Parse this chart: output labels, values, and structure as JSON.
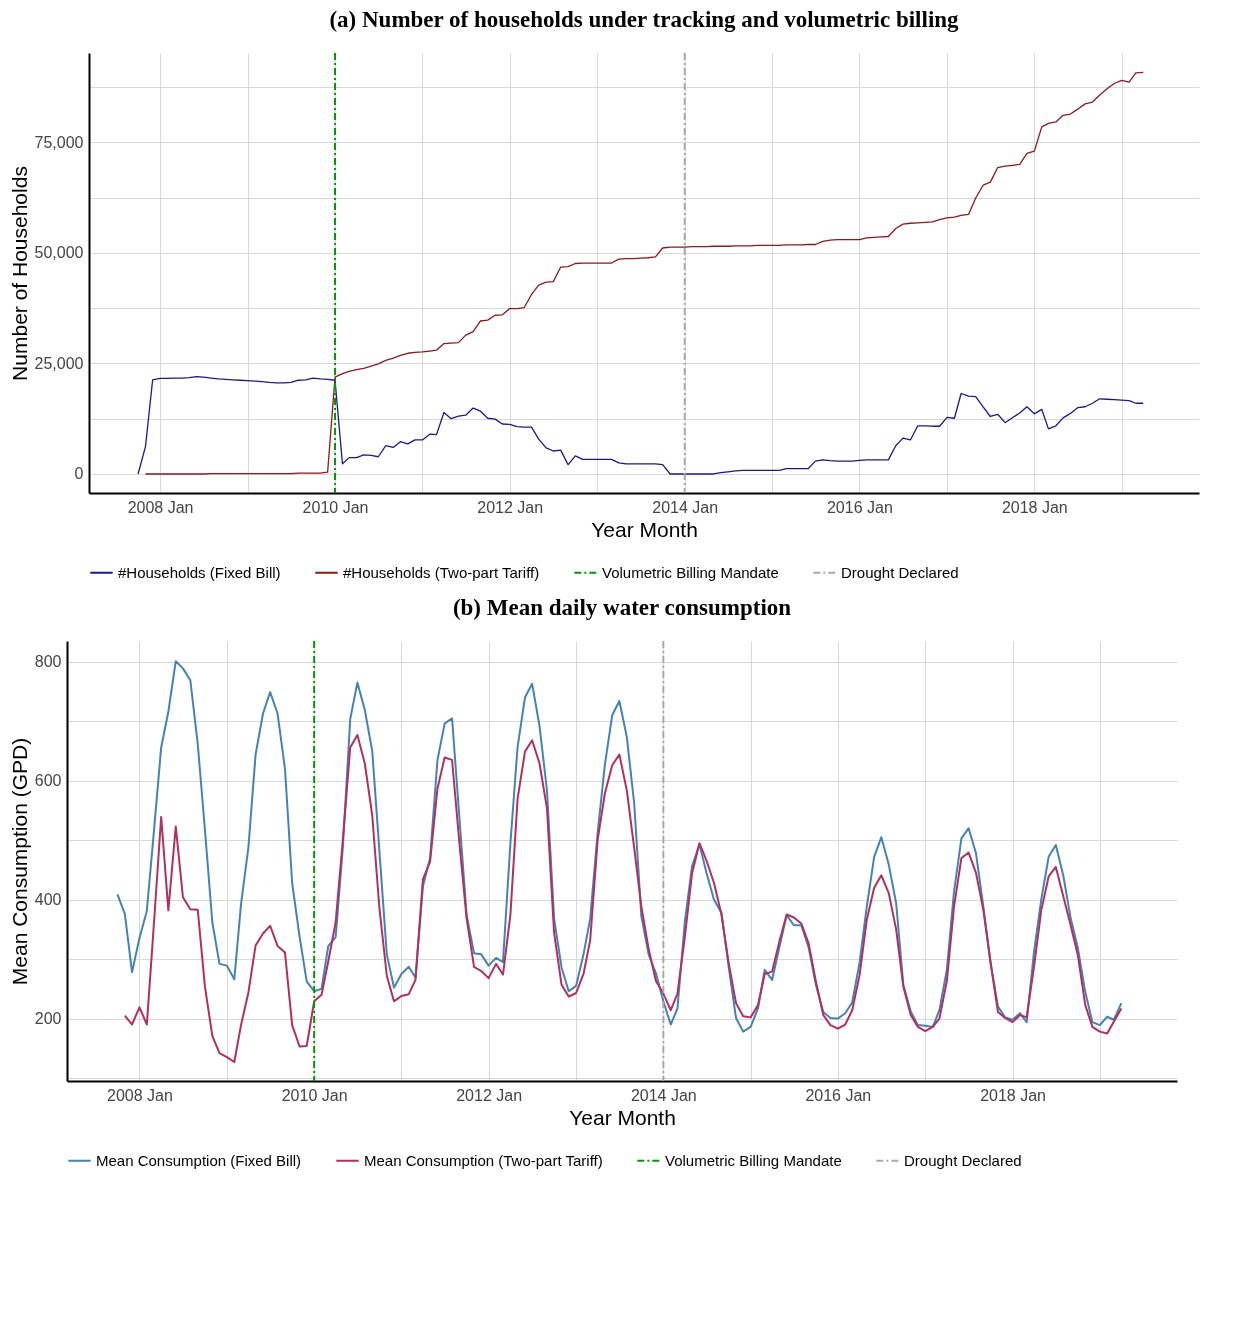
{
  "chart_data": [
    {
      "type": "line",
      "title": "(a) Number of households under tracking and volumetric billing",
      "xlabel": "Year Month",
      "ylabel": "Number of Households",
      "x": [
        "2007-10",
        "2007-11",
        "2007-12",
        "2008-01",
        "2008-02",
        "2008-03",
        "2008-04",
        "2008-05",
        "2008-06",
        "2008-07",
        "2008-08",
        "2008-09",
        "2008-10",
        "2008-11",
        "2008-12",
        "2009-01",
        "2009-02",
        "2009-03",
        "2009-04",
        "2009-05",
        "2009-06",
        "2009-07",
        "2009-08",
        "2009-09",
        "2009-10",
        "2009-11",
        "2009-12",
        "2010-01",
        "2010-02",
        "2010-03",
        "2010-04",
        "2010-05",
        "2010-06",
        "2010-07",
        "2010-08",
        "2010-09",
        "2010-10",
        "2010-11",
        "2010-12",
        "2011-01",
        "2011-02",
        "2011-03",
        "2011-04",
        "2011-05",
        "2011-06",
        "2011-07",
        "2011-08",
        "2011-09",
        "2011-10",
        "2011-11",
        "2011-12",
        "2012-01",
        "2012-02",
        "2012-03",
        "2012-04",
        "2012-05",
        "2012-06",
        "2012-07",
        "2012-08",
        "2012-09",
        "2012-10",
        "2012-11",
        "2012-12",
        "2013-01",
        "2013-02",
        "2013-03",
        "2013-04",
        "2013-05",
        "2013-06",
        "2013-07",
        "2013-08",
        "2013-09",
        "2013-10",
        "2013-11",
        "2013-12",
        "2014-01",
        "2014-02",
        "2014-03",
        "2014-04",
        "2014-05",
        "2014-06",
        "2014-07",
        "2014-08",
        "2014-09",
        "2014-10",
        "2014-11",
        "2014-12",
        "2015-01",
        "2015-02",
        "2015-03",
        "2015-04",
        "2015-05",
        "2015-06",
        "2015-07",
        "2015-08",
        "2015-09",
        "2015-10",
        "2015-11",
        "2015-12",
        "2016-01",
        "2016-02",
        "2016-03",
        "2016-04",
        "2016-05",
        "2016-06",
        "2016-07",
        "2016-08",
        "2016-09",
        "2016-10",
        "2016-11",
        "2016-12",
        "2017-01",
        "2017-02",
        "2017-03",
        "2017-04",
        "2017-05",
        "2017-06",
        "2017-07",
        "2017-08",
        "2017-09",
        "2017-10",
        "2017-11",
        "2017-12",
        "2018-01",
        "2018-02",
        "2018-03",
        "2018-04",
        "2018-05",
        "2018-06",
        "2018-07",
        "2018-08",
        "2018-09",
        "2018-10",
        "2018-11",
        "2018-12",
        "2019-01",
        "2019-02",
        "2019-03",
        "2019-04"
      ],
      "series": [
        {
          "name": "#Households (Fixed Bill)",
          "color": "#1a1a8c",
          "values": [
            0,
            6200,
            21300,
            21600,
            21600,
            21700,
            21700,
            21800,
            22000,
            21900,
            21700,
            21500,
            21400,
            21300,
            21200,
            21100,
            21000,
            20900,
            20700,
            20600,
            20600,
            20700,
            21200,
            21300,
            21700,
            21500,
            21400,
            21200,
            2300,
            3700,
            3700,
            4300,
            4200,
            3900,
            6400,
            6000,
            7300,
            6800,
            7700,
            7700,
            9000,
            8900,
            13900,
            12500,
            13100,
            13300,
            14900,
            14200,
            12600,
            12400,
            11300,
            11200,
            10700,
            10600,
            10600,
            7900,
            5900,
            5200,
            5400,
            2100,
            4100,
            3300,
            3300,
            3300,
            3300,
            3300,
            2500,
            2300,
            2300,
            2300,
            2300,
            2300,
            2100,
            0,
            0,
            0,
            0,
            0,
            0,
            0,
            300,
            500,
            700,
            800,
            800,
            800,
            800,
            800,
            800,
            1200,
            1200,
            1200,
            1200,
            2900,
            3200,
            3000,
            2900,
            2900,
            2900,
            3100,
            3200,
            3200,
            3200,
            3200,
            6400,
            8100,
            7700,
            10900,
            10900,
            10800,
            10800,
            12800,
            12600,
            18200,
            17600,
            17500,
            15200,
            13000,
            13500,
            11600,
            12700,
            13800,
            15200,
            13600,
            14600,
            10200,
            10900,
            12700,
            13700,
            15000,
            15200,
            16000,
            17000,
            16900,
            16800,
            16700,
            16600,
            16000,
            16000
          ]
        },
        {
          "name": "#Households (Two-part Tariff)",
          "color": "#8b1a1a",
          "values": [
            null,
            0,
            0,
            0,
            0,
            0,
            0,
            0,
            0,
            0,
            100,
            100,
            100,
            100,
            100,
            100,
            100,
            100,
            100,
            100,
            100,
            100,
            200,
            200,
            200,
            200,
            400,
            21900,
            22700,
            23200,
            23600,
            23900,
            24400,
            24900,
            25700,
            26200,
            26800,
            27300,
            27500,
            27600,
            27800,
            28000,
            29500,
            29600,
            29700,
            31400,
            32200,
            34600,
            34800,
            35900,
            36000,
            37400,
            37400,
            37600,
            40600,
            42700,
            43400,
            43500,
            46800,
            46900,
            47600,
            47700,
            47700,
            47700,
            47700,
            47700,
            48600,
            48700,
            48700,
            48800,
            48900,
            49100,
            51100,
            51300,
            51300,
            51300,
            51400,
            51400,
            51400,
            51500,
            51500,
            51500,
            51600,
            51600,
            51600,
            51700,
            51700,
            51700,
            51700,
            51800,
            51800,
            51800,
            51900,
            51900,
            52600,
            52900,
            53000,
            53000,
            53000,
            53000,
            53400,
            53500,
            53600,
            53700,
            55500,
            56500,
            56700,
            56800,
            56900,
            57000,
            57500,
            57900,
            58100,
            58500,
            58700,
            62400,
            65300,
            66000,
            69300,
            69600,
            69800,
            70000,
            72500,
            73000,
            78500,
            79300,
            79600,
            81100,
            81400,
            82500,
            83700,
            84100,
            85700,
            87100,
            88300,
            89000,
            88600,
            90700,
            90800
          ]
        }
      ],
      "xlim": [
        "2007-03-10",
        "2019-11-20"
      ],
      "xticks": [
        {
          "value": "2008-01",
          "label": "2008 Jan"
        },
        {
          "value": "2009-01",
          "label": null
        },
        {
          "value": "2010-01",
          "label": "2010 Jan"
        },
        {
          "value": "2011-01",
          "label": null
        },
        {
          "value": "2012-01",
          "label": "2012 Jan"
        },
        {
          "value": "2013-01",
          "label": null
        },
        {
          "value": "2014-01",
          "label": "2014 Jan"
        },
        {
          "value": "2015-01",
          "label": null
        },
        {
          "value": "2016-01",
          "label": "2016 Jan"
        },
        {
          "value": "2017-01",
          "label": null
        },
        {
          "value": "2018-01",
          "label": "2018 Jan"
        },
        {
          "value": "2019-01",
          "label": null
        }
      ],
      "ylim": [
        -4300,
        95200
      ],
      "yticks": [
        0,
        {
          "value": 12500,
          "label": null
        },
        {
          "value": 25000,
          "label": "25,000"
        },
        {
          "value": 37500,
          "label": null
        },
        {
          "value": 50000,
          "label": "50,000"
        },
        {
          "value": 62500,
          "label": null
        },
        {
          "value": 75000,
          "label": "75,000"
        },
        {
          "value": 87500,
          "label": null
        }
      ],
      "ref_lines": [
        {
          "axis": "x",
          "value": "2010-01",
          "label": "Volumetric Billing Mandate",
          "color": "#009900",
          "line_style": "dashed"
        },
        {
          "axis": "x",
          "value": "2014-01",
          "label": "Drought Declared",
          "color": "#a9a9a9",
          "line_style": "dashed"
        }
      ],
      "grid": true,
      "legend": "bottom"
    },
    {
      "type": "line",
      "title": "(b) Mean daily water consumption",
      "xlabel": "Year Month",
      "ylabel": "Mean Consumption (GPD)",
      "x": [
        "2007-10",
        "2007-11",
        "2007-12",
        "2008-01",
        "2008-02",
        "2008-03",
        "2008-04",
        "2008-05",
        "2008-06",
        "2008-07",
        "2008-08",
        "2008-09",
        "2008-10",
        "2008-11",
        "2008-12",
        "2009-01",
        "2009-02",
        "2009-03",
        "2009-04",
        "2009-05",
        "2009-06",
        "2009-07",
        "2009-08",
        "2009-09",
        "2009-10",
        "2009-11",
        "2009-12",
        "2010-01",
        "2010-02",
        "2010-03",
        "2010-04",
        "2010-05",
        "2010-06",
        "2010-07",
        "2010-08",
        "2010-09",
        "2010-10",
        "2010-11",
        "2010-12",
        "2011-01",
        "2011-02",
        "2011-03",
        "2011-04",
        "2011-05",
        "2011-06",
        "2011-07",
        "2011-08",
        "2011-09",
        "2011-10",
        "2011-11",
        "2011-12",
        "2012-01",
        "2012-02",
        "2012-03",
        "2012-04",
        "2012-05",
        "2012-06",
        "2012-07",
        "2012-08",
        "2012-09",
        "2012-10",
        "2012-11",
        "2012-12",
        "2013-01",
        "2013-02",
        "2013-03",
        "2013-04",
        "2013-05",
        "2013-06",
        "2013-07",
        "2013-08",
        "2013-09",
        "2013-10",
        "2013-11",
        "2013-12",
        "2014-01",
        "2014-02",
        "2014-03",
        "2014-04",
        "2014-05",
        "2014-06",
        "2014-07",
        "2014-08",
        "2014-09",
        "2014-10",
        "2014-11",
        "2014-12",
        "2015-01",
        "2015-02",
        "2015-03",
        "2015-04",
        "2015-05",
        "2015-06",
        "2015-07",
        "2015-08",
        "2015-09",
        "2015-10",
        "2015-11",
        "2015-12",
        "2016-01",
        "2016-02",
        "2016-03",
        "2016-04",
        "2016-05",
        "2016-06",
        "2016-07",
        "2016-08",
        "2016-09",
        "2016-10",
        "2016-11",
        "2016-12",
        "2017-01",
        "2017-02",
        "2017-03",
        "2017-04",
        "2017-05",
        "2017-06",
        "2017-07",
        "2017-08",
        "2017-09",
        "2017-10",
        "2017-11",
        "2017-12",
        "2018-01",
        "2018-02",
        "2018-03",
        "2018-04",
        "2018-05",
        "2018-06",
        "2018-07",
        "2018-08",
        "2018-09",
        "2018-10",
        "2018-11",
        "2018-12",
        "2019-01",
        "2019-02",
        "2019-03",
        "2019-04"
      ],
      "series": [
        {
          "name": "Mean Consumption (Fixed Bill)",
          "color": "#4682b4",
          "values": [
            409,
            376,
            278,
            335,
            381,
            512,
            656,
            716,
            801,
            789,
            769,
            662,
            518,
            362,
            292,
            289,
            266,
            392,
            488,
            644,
            713,
            749,
            713,
            620,
            428,
            338,
            262,
            246,
            250,
            322,
            337,
            488,
            704,
            765,
            719,
            650,
            482,
            308,
            252,
            275,
            287,
            269,
            422,
            470,
            635,
            696,
            705,
            536,
            374,
            310,
            308,
            289,
            302,
            295,
            494,
            656,
            740,
            763,
            692,
            584,
            368,
            286,
            246,
            255,
            308,
            368,
            512,
            626,
            710,
            734,
            674,
            562,
            372,
            307,
            276,
            229,
            190,
            217,
            363,
            456,
            493,
            444,
            400,
            378,
            288,
            201,
            178,
            186,
            217,
            282,
            265,
            319,
            374,
            357,
            357,
            319,
            257,
            211,
            201,
            200,
            209,
            227,
            294,
            388,
            472,
            505,
            459,
            394,
            257,
            212,
            189,
            188,
            186,
            214,
            282,
            413,
            503,
            520,
            478,
            388,
            294,
            220,
            202,
            198,
            209,
            194,
            313,
            400,
            472,
            492,
            441,
            369,
            319,
            245,
            194,
            189,
            203,
            198,
            226
          ]
        },
        {
          "name": "Mean Consumption (Two-part Tariff)",
          "color": "#b03060",
          "values": [
            null,
            205,
            190,
            219,
            190,
            356,
            539,
            382,
            523,
            404,
            384,
            383,
            254,
            171,
            142,
            135,
            127,
            189,
            244,
            323,
            343,
            356,
            322,
            311,
            189,
            153,
            154,
            229,
            240,
            296,
            362,
            500,
            656,
            677,
            629,
            542,
            386,
            272,
            229,
            238,
            241,
            265,
            434,
            464,
            587,
            639,
            635,
            494,
            368,
            287,
            280,
            268,
            292,
            274,
            374,
            569,
            649,
            668,
            629,
            554,
            344,
            257,
            237,
            243,
            275,
            332,
            500,
            578,
            626,
            644,
            584,
            487,
            388,
            316,
            263,
            242,
            214,
            242,
            338,
            444,
            495,
            465,
            428,
            375,
            294,
            226,
            204,
            202,
            223,
            275,
            279,
            329,
            375,
            370,
            360,
            326,
            263,
            206,
            189,
            183,
            190,
            214,
            273,
            366,
            420,
            441,
            411,
            350,
            254,
            206,
            186,
            179,
            186,
            200,
            263,
            388,
            470,
            479,
            445,
            382,
            294,
            211,
            201,
            194,
            206,
            202,
            288,
            382,
            439,
            455,
            406,
            357,
            307,
            223,
            186,
            178,
            175,
            195,
            217
          ]
        }
      ],
      "xlim": [
        "2007-03-04",
        "2019-11-20"
      ],
      "xticks": [
        {
          "value": "2008-01",
          "label": "2008 Jan"
        },
        {
          "value": "2009-01",
          "label": null
        },
        {
          "value": "2010-01",
          "label": "2010 Jan"
        },
        {
          "value": "2011-01",
          "label": null
        },
        {
          "value": "2012-01",
          "label": "2012 Jan"
        },
        {
          "value": "2013-01",
          "label": null
        },
        {
          "value": "2014-01",
          "label": "2014 Jan"
        },
        {
          "value": "2015-01",
          "label": null
        },
        {
          "value": "2016-01",
          "label": "2016 Jan"
        },
        {
          "value": "2017-01",
          "label": null
        },
        {
          "value": "2018-01",
          "label": "2018 Jan"
        },
        {
          "value": "2019-01",
          "label": null
        }
      ],
      "ylim": [
        95,
        835
      ],
      "yticks": [
        {
          "value": 100,
          "label": null
        },
        200,
        {
          "value": 300,
          "label": null
        },
        400,
        {
          "value": 500,
          "label": null
        },
        600,
        {
          "value": 700,
          "label": null
        },
        800
      ],
      "ref_lines": [
        {
          "axis": "x",
          "value": "2010-01",
          "label": "Volumetric Billing Mandate",
          "color": "#009900",
          "line_style": "dashed"
        },
        {
          "axis": "x",
          "value": "2014-01",
          "label": "Drought Declared",
          "color": "#a9a9a9",
          "line_style": "dashed"
        }
      ],
      "grid": true,
      "legend": "bottom"
    }
  ]
}
